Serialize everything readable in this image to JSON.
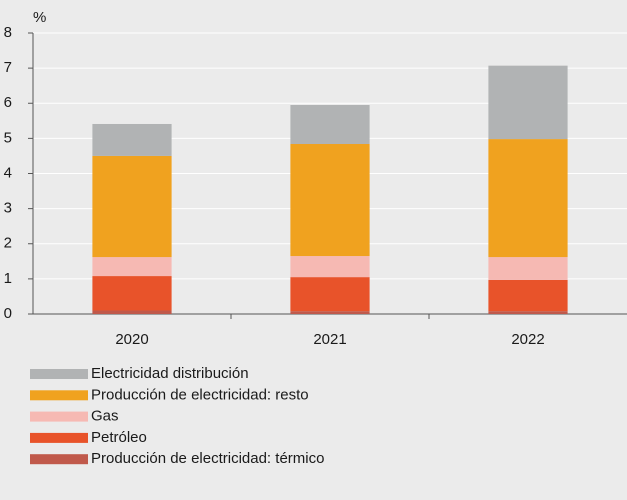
{
  "chart_data": {
    "type": "stacked-bar",
    "ylabel": "%",
    "categories": [
      "2020",
      "2021",
      "2022"
    ],
    "series": [
      {
        "name": "Electricidad distribución",
        "color": "#b1b3b4",
        "values": [
          0.91,
          1.11,
          2.09
        ]
      },
      {
        "name": "Producción de electricidad: resto",
        "color": "#f0a21f",
        "values": [
          2.88,
          3.19,
          3.36
        ]
      },
      {
        "name": "Gas",
        "color": "#f6b9b3",
        "values": [
          0.54,
          0.6,
          0.65
        ]
      },
      {
        "name": "Petróleo",
        "color": "#e8532a",
        "values": [
          0.98,
          0.97,
          0.89
        ]
      },
      {
        "name": "Producción de electricidad: térmico",
        "color": "#c0594b",
        "values": [
          0.1,
          0.08,
          0.08
        ]
      }
    ],
    "ylim": [
      0,
      8
    ],
    "yticks": [
      0,
      1,
      2,
      3,
      4,
      5,
      6,
      7,
      8
    ],
    "grid": true
  }
}
